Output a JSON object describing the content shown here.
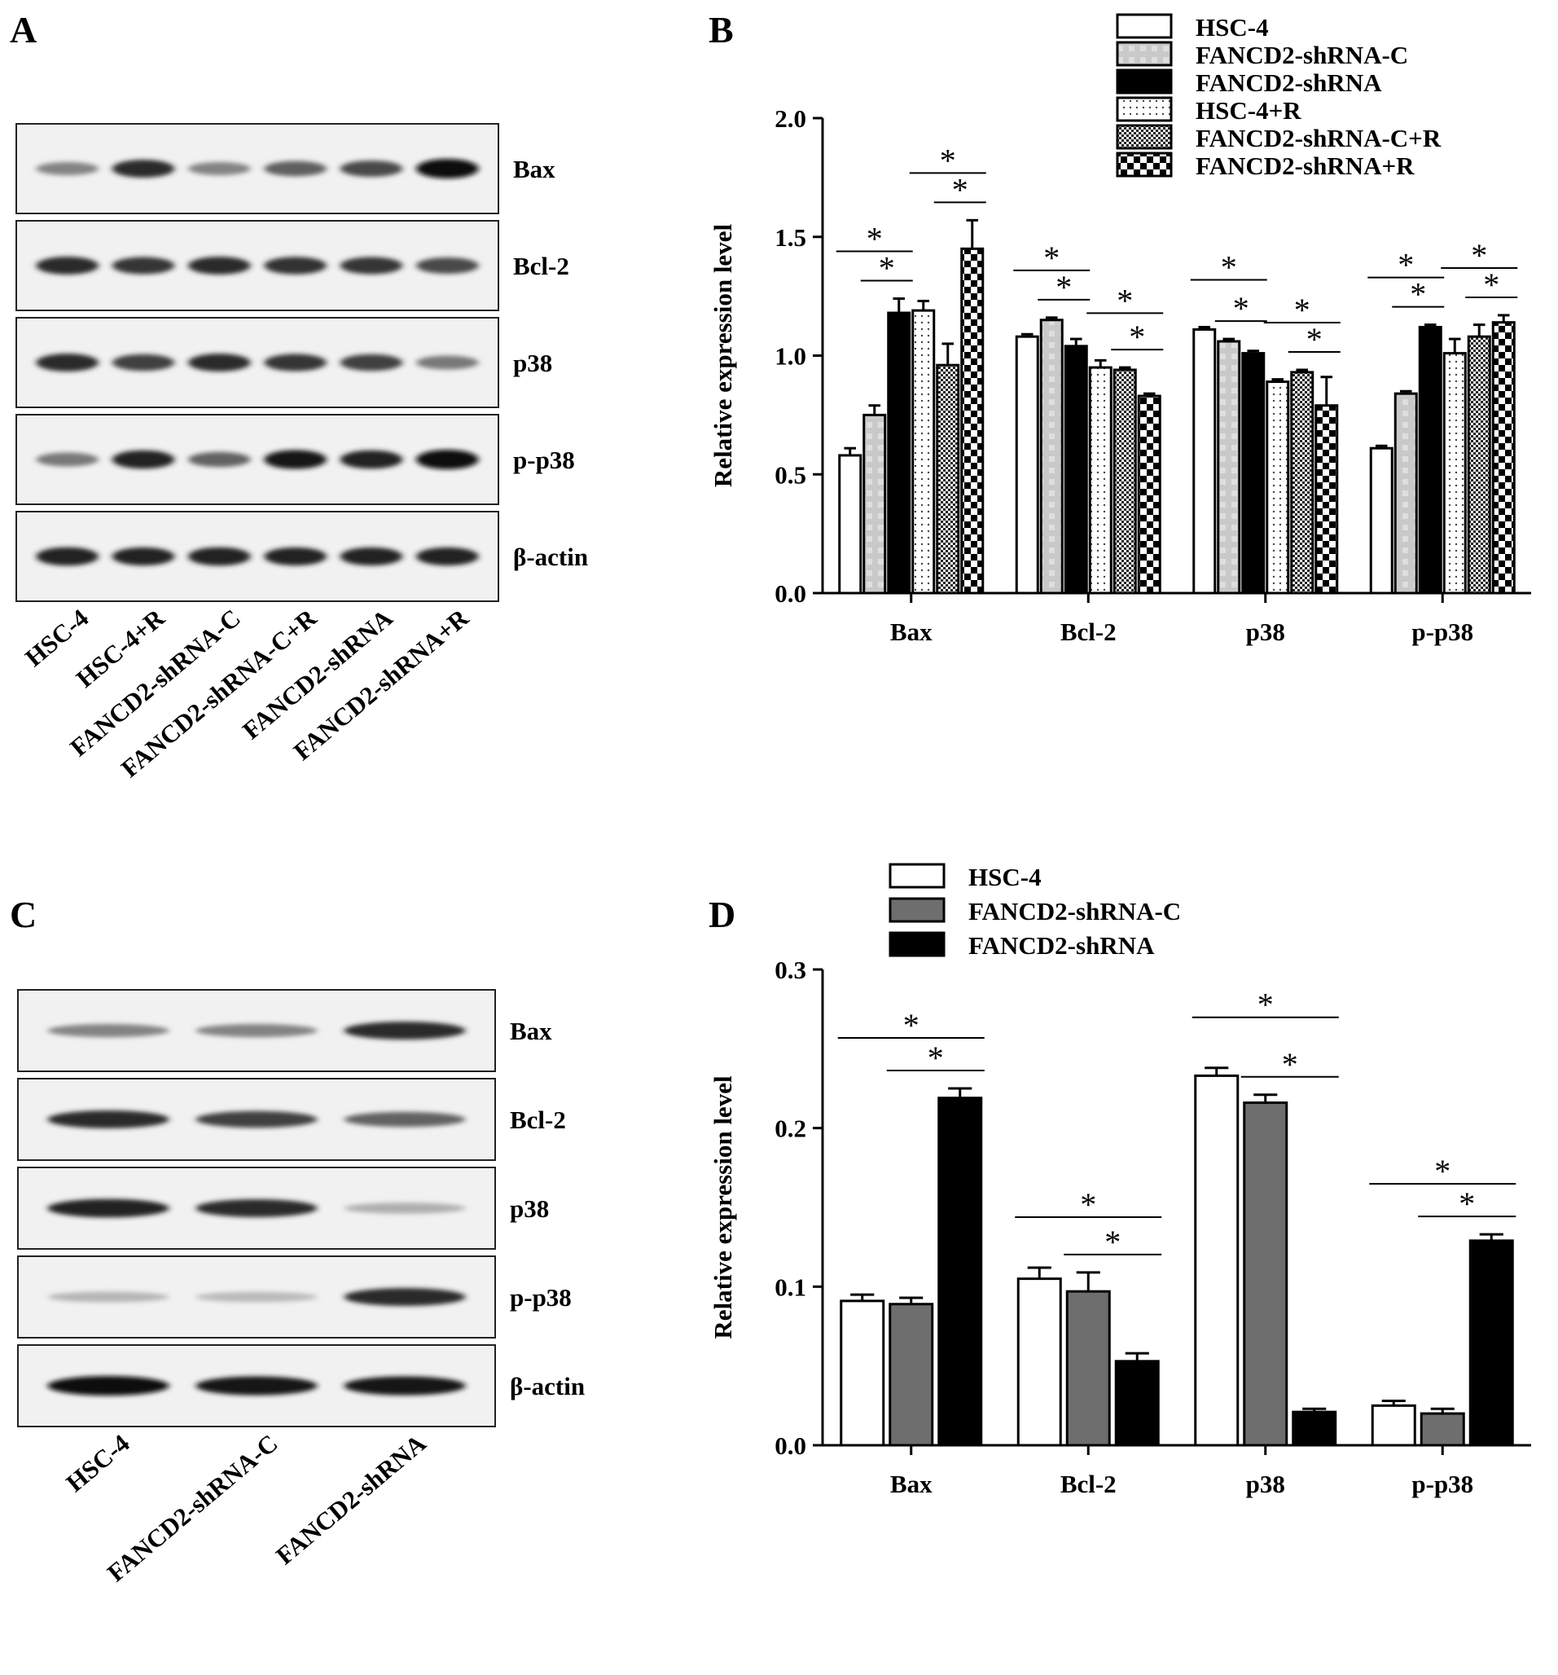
{
  "panels": {
    "A": {
      "letter": "A",
      "blot_rows": [
        "Bax",
        "Bcl-2",
        "p38",
        "p-p38",
        "β-actin"
      ],
      "lanes": [
        "HSC-4",
        "HSC-4+R",
        "FANCD2-shRNA-C",
        "FANCD2-shRNA-C+R",
        "FANCD2-shRNA",
        "FANCD2-shRNA+R"
      ],
      "band_intensity": [
        [
          0.45,
          0.85,
          0.45,
          0.62,
          0.72,
          1.0
        ],
        [
          0.85,
          0.8,
          0.85,
          0.82,
          0.8,
          0.72
        ],
        [
          0.85,
          0.75,
          0.85,
          0.8,
          0.75,
          0.5
        ],
        [
          0.5,
          0.9,
          0.6,
          0.95,
          0.9,
          1.0
        ],
        [
          0.9,
          0.88,
          0.9,
          0.88,
          0.88,
          0.88
        ]
      ]
    },
    "C": {
      "letter": "C",
      "blot_rows": [
        "Bax",
        "Bcl-2",
        "p38",
        "p-p38",
        "β-actin"
      ],
      "lanes": [
        "HSC-4",
        "FANCD2-shRNA-C",
        "FANCD2-shRNA"
      ],
      "band_intensity": [
        [
          0.45,
          0.45,
          0.85
        ],
        [
          0.85,
          0.75,
          0.6
        ],
        [
          0.9,
          0.85,
          0.25
        ],
        [
          0.22,
          0.2,
          0.85
        ],
        [
          1.0,
          0.95,
          0.95
        ]
      ]
    }
  },
  "chart_data": [
    {
      "panel": "B",
      "type": "bar",
      "ylabel": "Relative expression level",
      "ylim": [
        0,
        2.0
      ],
      "yticks": [
        "0.0",
        "0.5",
        "1.0",
        "1.5",
        "2.0"
      ],
      "categories": [
        "Bax",
        "Bcl-2",
        "p38",
        "p-p38"
      ],
      "legend_position": "top-right",
      "series": [
        {
          "name": "HSC-4",
          "pattern": "white",
          "values": [
            0.58,
            1.08,
            1.11,
            0.61
          ],
          "errors": [
            0.03,
            0.01,
            0.01,
            0.01
          ]
        },
        {
          "name": "FANCD2-shRNA-C",
          "pattern": "gray",
          "values": [
            0.75,
            1.15,
            1.06,
            0.84
          ],
          "errors": [
            0.04,
            0.01,
            0.01,
            0.01
          ]
        },
        {
          "name": "FANCD2-shRNA",
          "pattern": "black",
          "values": [
            1.18,
            1.04,
            1.01,
            1.12
          ],
          "errors": [
            0.06,
            0.03,
            0.01,
            0.01
          ]
        },
        {
          "name": "HSC-4+R",
          "pattern": "dots",
          "values": [
            1.19,
            0.95,
            0.89,
            1.01
          ],
          "errors": [
            0.04,
            0.03,
            0.01,
            0.06
          ]
        },
        {
          "name": "FANCD2-shRNA-C+R",
          "pattern": "checker-fine",
          "values": [
            0.96,
            0.94,
            0.93,
            1.08
          ],
          "errors": [
            0.09,
            0.01,
            0.01,
            0.05
          ]
        },
        {
          "name": "FANCD2-shRNA+R",
          "pattern": "checker",
          "values": [
            1.45,
            0.83,
            0.79,
            1.14
          ],
          "errors": [
            0.12,
            0.01,
            0.12,
            0.03
          ]
        }
      ],
      "significance": [
        {
          "category": 0,
          "from": 0,
          "to": 2,
          "level": 0,
          "mark": "*"
        },
        {
          "category": 0,
          "from": 1,
          "to": 2,
          "level": 1,
          "mark": "*"
        },
        {
          "category": 0,
          "from": 3,
          "to": 5,
          "level": 0,
          "mark": "*"
        },
        {
          "category": 0,
          "from": 4,
          "to": 5,
          "level": 1,
          "mark": "*"
        },
        {
          "category": 1,
          "from": 0,
          "to": 2,
          "level": 0,
          "mark": "*"
        },
        {
          "category": 1,
          "from": 1,
          "to": 2,
          "level": 1,
          "mark": "*"
        },
        {
          "category": 1,
          "from": 3,
          "to": 5,
          "level": 0,
          "mark": "*"
        },
        {
          "category": 1,
          "from": 4,
          "to": 5,
          "level": 1,
          "mark": "*"
        },
        {
          "category": 2,
          "from": 0,
          "to": 2,
          "level": 0,
          "mark": "*"
        },
        {
          "category": 2,
          "from": 1,
          "to": 2,
          "level": 1,
          "mark": "*"
        },
        {
          "category": 2,
          "from": 3,
          "to": 5,
          "level": 0,
          "mark": "*"
        },
        {
          "category": 2,
          "from": 4,
          "to": 5,
          "level": 1,
          "mark": "*"
        },
        {
          "category": 3,
          "from": 0,
          "to": 2,
          "level": 0,
          "mark": "*"
        },
        {
          "category": 3,
          "from": 1,
          "to": 2,
          "level": 1,
          "mark": "*"
        },
        {
          "category": 3,
          "from": 3,
          "to": 5,
          "level": 0,
          "mark": "*"
        },
        {
          "category": 3,
          "from": 4,
          "to": 5,
          "level": 1,
          "mark": "*"
        }
      ]
    },
    {
      "panel": "D",
      "type": "bar",
      "ylabel": "Relative expression level",
      "ylim": [
        0,
        0.3
      ],
      "yticks": [
        "0.0",
        "0.1",
        "0.2",
        "0.3"
      ],
      "categories": [
        "Bax",
        "Bcl-2",
        "p38",
        "p-p38"
      ],
      "legend_position": "top-left",
      "series": [
        {
          "name": "HSC-4",
          "color": "#ffffff",
          "values": [
            0.091,
            0.105,
            0.233,
            0.025
          ],
          "errors": [
            0.004,
            0.007,
            0.005,
            0.003
          ]
        },
        {
          "name": "FANCD2-shRNA-C",
          "color": "#6e6e6e",
          "values": [
            0.089,
            0.097,
            0.216,
            0.02
          ],
          "errors": [
            0.004,
            0.012,
            0.005,
            0.003
          ]
        },
        {
          "name": "FANCD2-shRNA",
          "color": "#000000",
          "values": [
            0.219,
            0.053,
            0.021,
            0.129
          ],
          "errors": [
            0.006,
            0.005,
            0.002,
            0.004
          ]
        }
      ],
      "significance": [
        {
          "category": 0,
          "from": 0,
          "to": 2,
          "level": 0,
          "mark": "*"
        },
        {
          "category": 0,
          "from": 1,
          "to": 2,
          "level": 1,
          "mark": "*"
        },
        {
          "category": 1,
          "from": 0,
          "to": 2,
          "level": 0,
          "mark": "*"
        },
        {
          "category": 1,
          "from": 1,
          "to": 2,
          "level": 1,
          "mark": "*"
        },
        {
          "category": 2,
          "from": 0,
          "to": 2,
          "level": 0,
          "mark": "*"
        },
        {
          "category": 2,
          "from": 1,
          "to": 2,
          "level": 1,
          "mark": "*"
        },
        {
          "category": 3,
          "from": 0,
          "to": 2,
          "level": 0,
          "mark": "*"
        },
        {
          "category": 3,
          "from": 1,
          "to": 2,
          "level": 1,
          "mark": "*"
        }
      ]
    }
  ],
  "letters": {
    "B": "B",
    "D": "D"
  }
}
